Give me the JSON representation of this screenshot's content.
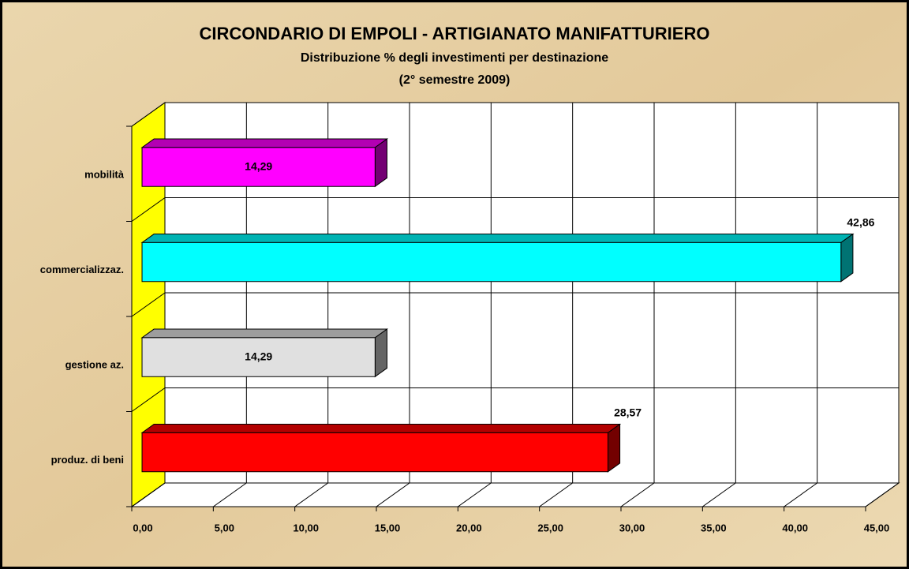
{
  "chart_data": {
    "type": "bar3d_horizontal",
    "title": "CIRCONDARIO DI EMPOLI - ARTIGIANATO MANIFATTURIERO",
    "subtitle": [
      "Distribuzione % degli investimenti per destinazione",
      "(2° semestre 2009)"
    ],
    "categories": [
      "mobilità",
      "commercializzaz.",
      "gestione az.",
      "produz. di beni"
    ],
    "values": [
      14.29,
      42.86,
      14.29,
      28.57
    ],
    "value_labels": [
      "14,29",
      "42,86",
      "14,29",
      "28,57"
    ],
    "colors": [
      "#ff00ff",
      "#00ffff",
      "#e0e0e0",
      "#ff0000"
    ],
    "xlim": [
      0,
      45
    ],
    "xticks": [
      {
        "value": 0,
        "label": "0,00"
      },
      {
        "value": 5,
        "label": "5,00"
      },
      {
        "value": 10,
        "label": "10,00"
      },
      {
        "value": 15,
        "label": "15,00"
      },
      {
        "value": 20,
        "label": "20,00"
      },
      {
        "value": 25,
        "label": "25,00"
      },
      {
        "value": 30,
        "label": "30,00"
      },
      {
        "value": 35,
        "label": "35,00"
      },
      {
        "value": 40,
        "label": "40,00"
      },
      {
        "value": 45,
        "label": "45,00"
      }
    ],
    "grid": true
  }
}
